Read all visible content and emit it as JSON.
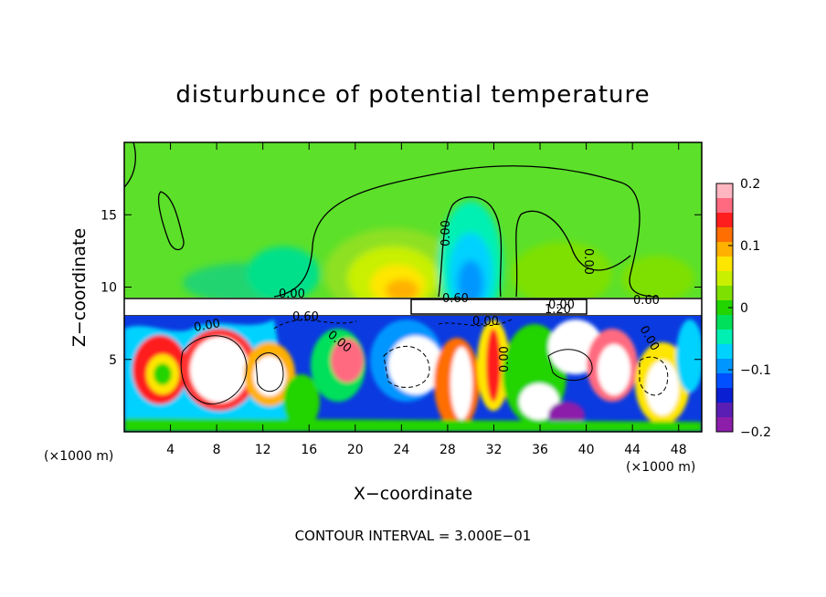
{
  "chart_data": {
    "type": "heatmap",
    "title": "disturbunce of potential temperature",
    "xlabel": "X−coordinate",
    "ylabel": "Z−coordinate",
    "x_unit": "(×1000 m)",
    "y_unit": "(×1000 m)",
    "x_ticks": [
      4,
      8,
      12,
      16,
      20,
      24,
      28,
      32,
      36,
      40,
      44,
      48
    ],
    "y_ticks": [
      5,
      10,
      15
    ],
    "xlim": [
      0,
      50
    ],
    "ylim": [
      0,
      20
    ],
    "colorbar": {
      "min": -0.2,
      "max": 0.2,
      "tick_values": [
        0.2,
        0.1,
        0,
        -0.1,
        -0.2
      ],
      "tick_labels": [
        "0.2",
        "0.1",
        "0",
        "−0.1",
        "−0.2"
      ],
      "colors": [
        "#ffb6c1",
        "#ff6a80",
        "#ff1e1e",
        "#ff6e00",
        "#ffb000",
        "#ffe600",
        "#c8f000",
        "#7ee000",
        "#22d400",
        "#00e05a",
        "#00f0b4",
        "#00d2ff",
        "#0096ff",
        "#0050ff",
        "#0a1ed2",
        "#5a1eb4",
        "#8c1eaa"
      ]
    },
    "contour_labels": [
      "0.00",
      "0.00",
      "0.00",
      "0.00",
      "0.60",
      "0.60",
      "1.20",
      "0.60",
      "0.00",
      "0.00",
      "0.00",
      "0.00",
      "0.00"
    ],
    "footer": "CONTOUR INTERVAL = 3.000E−01",
    "grid": false
  }
}
